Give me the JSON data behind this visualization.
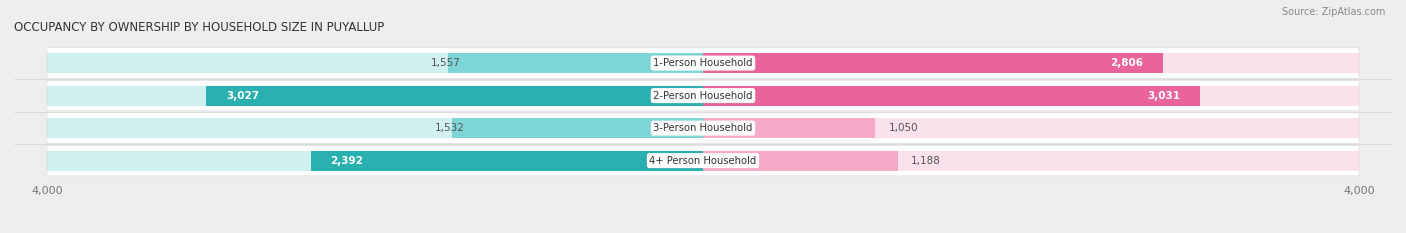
{
  "title": "OCCUPANCY BY OWNERSHIP BY HOUSEHOLD SIZE IN PUYALLUP",
  "source": "Source: ZipAtlas.com",
  "categories": [
    "1-Person Household",
    "2-Person Household",
    "3-Person Household",
    "4+ Person Household"
  ],
  "owner_values": [
    1557,
    3027,
    1532,
    2392
  ],
  "renter_values": [
    2806,
    3031,
    1050,
    1188
  ],
  "owner_color_dark": "#2ab0b0",
  "owner_color_light": "#7dd5d5",
  "renter_color_dark": "#e8649a",
  "renter_color_light": "#f5aac8",
  "axis_max": 4000,
  "bg_color": "#eeeeee",
  "row_bg_color": "#f7f7f7",
  "bar_height": 0.62,
  "value_label_color_dark": "#555555",
  "value_label_color_white": "#ffffff",
  "title_color": "#333333",
  "source_color": "#888888",
  "axis_label_color": "#777777",
  "inside_label_threshold_owner": 2000,
  "inside_label_threshold_renter": 2000
}
